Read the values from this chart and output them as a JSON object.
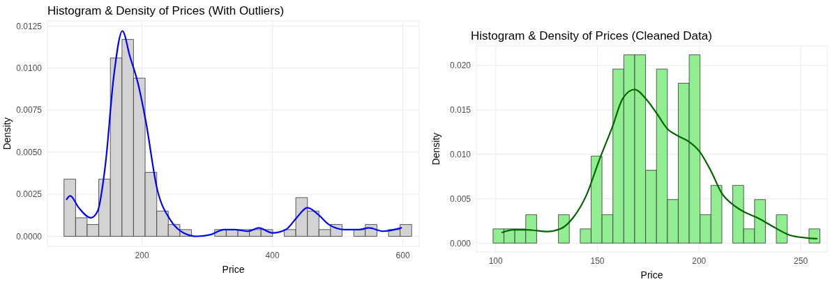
{
  "chart_data": [
    {
      "type": "histogram",
      "title": "Histogram & Density of Prices (With Outliers)",
      "xlabel": "Price",
      "ylabel": "Density",
      "grid": true,
      "color": "#d3d3d3",
      "bins": [
        80.4,
        98.2,
        115.9,
        133.7,
        151.5,
        169.3,
        187.0,
        204.8,
        222.6,
        240.3,
        258.1,
        275.9,
        293.6,
        311.4,
        329.2,
        347.0,
        364.7,
        382.5,
        400.3,
        418.0,
        435.8,
        453.6,
        471.3,
        489.1,
        506.9,
        524.7,
        542.4,
        560.2,
        578.0,
        595.7,
        613.5
      ],
      "values": [
        0.0034,
        0.0011,
        0.0007,
        0.0034,
        0.0106,
        0.0117,
        0.0094,
        0.0038,
        0.0015,
        0.0007,
        0.0004,
        0,
        0,
        0.0004,
        0.0004,
        0.0004,
        0.0004,
        0.0004,
        0,
        0.0004,
        0.0023,
        0.0015,
        0.0004,
        0.0007,
        0,
        0.0004,
        0.0007,
        0,
        0.0004,
        0.0007
      ],
      "series": [
        {
          "type": "line",
          "color": "#0000ff",
          "x": [
            84.5,
            89.9,
            103,
            121.6,
            132,
            144,
            156.7,
            170,
            181.4,
            193.8,
            206,
            222.7,
            243,
            264,
            284.5,
            305,
            325.8,
            342,
            363,
            379,
            400,
            420.6,
            437,
            453.6,
            470,
            486.6,
            511,
            532,
            548,
            569,
            597.6
          ],
          "values": [
            0.0022,
            0.0024,
            0.0017,
            0.0011,
            0.0015,
            0.0043,
            0.0095,
            0.0122,
            0.0107,
            0.0091,
            0.0068,
            0.0029,
            0.001,
            0.0002,
            0,
            0.0001,
            0.0004,
            0.0004,
            0.0003,
            0.0005,
            0.0002,
            0.0004,
            0.0011,
            0.0017,
            0.0013,
            0.0007,
            0.0004,
            0.0004,
            0.0005,
            0.0003,
            0.0005
          ]
        }
      ],
      "xlim": [
        55,
        625
      ],
      "xticks": [
        200,
        400,
        600
      ],
      "ylim": [
        -0.0006,
        0.0128
      ],
      "yticks": [
        {
          "value": 0,
          "label": "0.0000"
        },
        {
          "value": 0.0025,
          "label": "0.0025"
        },
        {
          "value": 0.005,
          "label": "0.0050"
        },
        {
          "value": 0.0075,
          "label": "0.0075"
        },
        {
          "value": 0.01,
          "label": "0.0100"
        },
        {
          "value": 0.0125,
          "label": "0.0125"
        }
      ]
    },
    {
      "type": "histogram",
      "title": "Histogram & Density of Prices (Cleaned Data)",
      "xlabel": "Price",
      "ylabel": "Density",
      "grid": true,
      "color": "#90ee90",
      "bins": [
        98.7,
        104.06,
        109.41,
        114.77,
        120.13,
        125.49,
        130.84,
        136.2,
        141.56,
        146.91,
        152.27,
        157.63,
        162.98,
        168.34,
        173.7,
        179.06,
        184.41,
        189.77,
        195.13,
        200.48,
        205.84,
        211.2,
        216.55,
        221.91,
        227.27,
        232.63,
        237.98,
        243.34,
        248.7,
        254.05,
        259.4
      ],
      "values": [
        0.0016,
        0.0016,
        0.0016,
        0.0032,
        0,
        0,
        0.0032,
        0,
        0.0016,
        0.0098,
        0.0032,
        0.0196,
        0.0212,
        0.0212,
        0.0082,
        0.0196,
        0.0049,
        0.018,
        0.0212,
        0.0032,
        0.0065,
        0,
        0.0065,
        0.0016,
        0.0049,
        0,
        0.0032,
        0,
        0,
        0.0016
      ],
      "series": [
        {
          "type": "line",
          "color": "#006400",
          "x": [
            103.2,
            108.7,
            115.1,
            125.4,
            131.8,
            138.2,
            144.6,
            151,
            157.4,
            162.5,
            168.3,
            174,
            179.2,
            184.3,
            189.4,
            195.2,
            200.3,
            206.1,
            211.2,
            216.3,
            221.4,
            229.1,
            236.8,
            244.5,
            252.2,
            257.9
          ],
          "values": [
            0.0012,
            0.0015,
            0.0015,
            0.0013,
            0.0016,
            0.0029,
            0.0054,
            0.0094,
            0.0131,
            0.0163,
            0.0173,
            0.0162,
            0.0146,
            0.0129,
            0.0121,
            0.0114,
            0.0103,
            0.008,
            0.0056,
            0.0044,
            0.0036,
            0.0028,
            0.0018,
            0.0009,
            0.0006,
            0.0005
          ]
        }
      ],
      "xlim": [
        90.5,
        263
      ],
      "xticks": [
        100,
        150,
        200,
        250
      ],
      "ylim": [
        -0.001,
        0.0222
      ],
      "yticks": [
        {
          "value": 0,
          "label": "0.000"
        },
        {
          "value": 0.005,
          "label": "0.005"
        },
        {
          "value": 0.01,
          "label": "0.010"
        },
        {
          "value": 0.015,
          "label": "0.015"
        },
        {
          "value": 0.02,
          "label": "0.020"
        }
      ]
    }
  ]
}
